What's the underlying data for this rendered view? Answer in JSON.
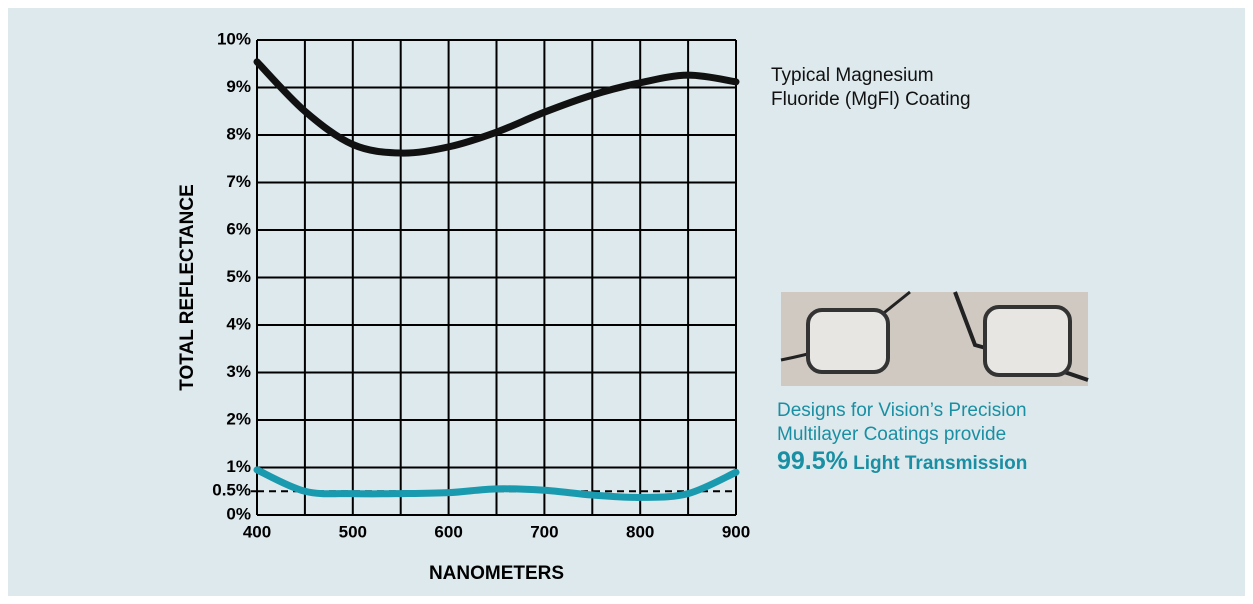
{
  "chart_data": {
    "type": "line",
    "x_label": "NANOMETERS",
    "y_label": "TOTAL REFLECTANCE",
    "x": [
      400,
      450,
      500,
      550,
      600,
      650,
      700,
      750,
      800,
      850,
      900
    ],
    "series": [
      {
        "name": "Typical Magnesium Fluoride (MgFl) Coating",
        "color": "#111111",
        "values": [
          9.54,
          8.5,
          7.8,
          7.62,
          7.75,
          8.06,
          8.48,
          8.84,
          9.1,
          9.26,
          9.12
        ]
      },
      {
        "color": "#1a9aae",
        "values": [
          0.95,
          0.5,
          0.45,
          0.45,
          0.47,
          0.55,
          0.52,
          0.42,
          0.37,
          0.45,
          0.9
        ]
      }
    ],
    "xlim": [
      400,
      900
    ],
    "ylim": [
      0,
      10
    ],
    "xticks": [
      400,
      500,
      600,
      700,
      800,
      900
    ],
    "x_gridlines": [
      400,
      450,
      500,
      550,
      600,
      650,
      700,
      750,
      800,
      850,
      900
    ],
    "yticks": [
      {
        "value": 0,
        "label": "0%"
      },
      {
        "value": 0.5,
        "label": "0.5%"
      },
      {
        "value": 1,
        "label": "1%"
      },
      {
        "value": 2,
        "label": "2%"
      },
      {
        "value": 3,
        "label": "3%"
      },
      {
        "value": 4,
        "label": "4%"
      },
      {
        "value": 5,
        "label": "5%"
      },
      {
        "value": 6,
        "label": "6%"
      },
      {
        "value": 7,
        "label": "7%"
      },
      {
        "value": 8,
        "label": "8%"
      },
      {
        "value": 9,
        "label": "9%"
      },
      {
        "value": 10,
        "label": "10%"
      }
    ],
    "dashed_reference": 0.5,
    "grid": true,
    "callout": {
      "lines": [
        "Designs for Vision’s Precision",
        "Multilayer Coatings provide"
      ],
      "highlight": "99.5%",
      "highlight_text": "Light Transmission",
      "color": "#1a8fa3"
    }
  }
}
